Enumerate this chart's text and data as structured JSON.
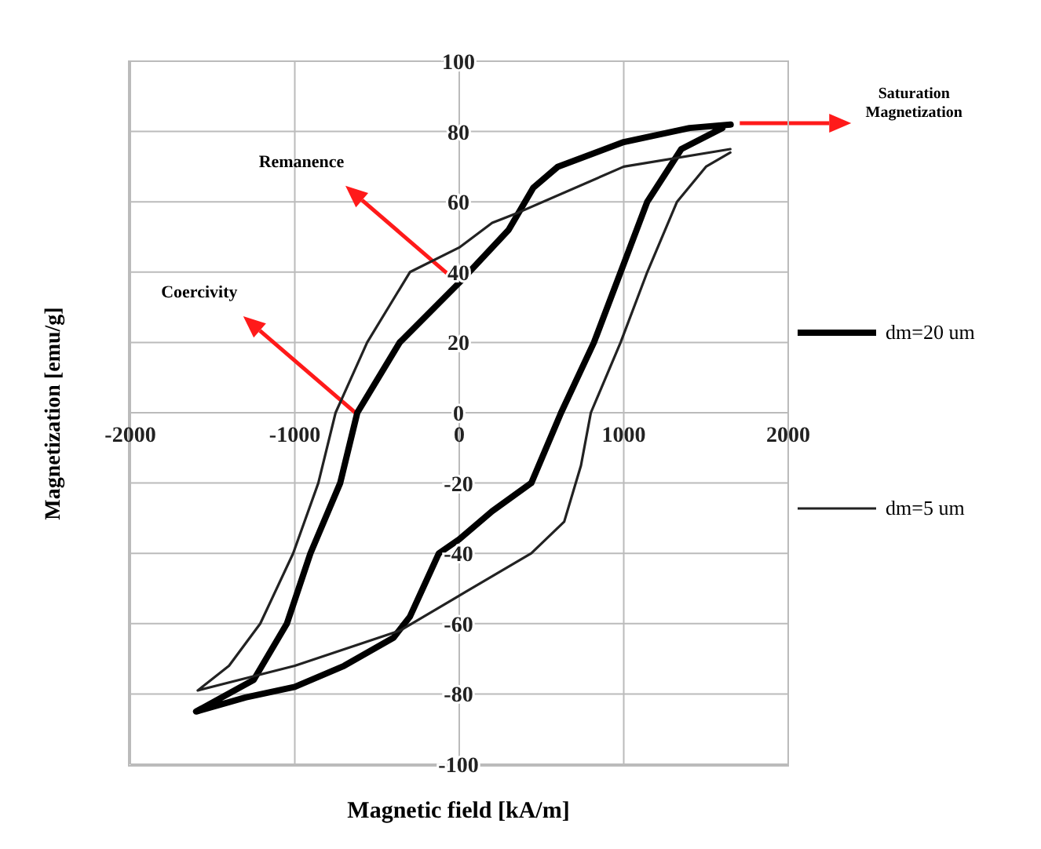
{
  "chart_data": {
    "type": "line",
    "xlabel": "Magnetic field [kA/m]",
    "ylabel": "Magnetization [emu/g]",
    "xlim": [
      -2000,
      2000
    ],
    "xticks": [
      -2000,
      -1000,
      0,
      1000,
      2000
    ],
    "ylim": [
      -100,
      100
    ],
    "yticks": [
      -100,
      -80,
      -60,
      -40,
      -20,
      0,
      20,
      40,
      60,
      80,
      100
    ],
    "grid": true,
    "legend": "right",
    "marker": "none",
    "line_style": "solid",
    "series": [
      {
        "name": "dm=20 um",
        "color": "#000000",
        "x": [
          1650,
          1400,
          1000,
          600,
          450,
          300,
          0,
          -362,
          -620,
          -724,
          -905,
          -1048,
          -1250,
          -1600,
          -1300,
          -1000,
          -700,
          -400,
          -300,
          -124,
          0,
          200,
          438,
          619,
          819,
          981,
          1143,
          1350,
          1600
        ],
        "values": [
          82,
          81,
          77,
          70,
          64,
          52,
          37,
          20,
          0,
          -20,
          -40,
          -60,
          -76,
          -85,
          -81,
          -78,
          -72,
          -64,
          -58,
          -40,
          -36,
          -28,
          -20,
          0,
          20,
          40,
          60,
          75,
          81
        ]
      },
      {
        "name": "dm=5 um",
        "color": "#222222",
        "x": [
          1648,
          1000,
          362,
          200,
          0,
          -300,
          -560,
          -752,
          -857,
          -1010,
          -1210,
          -1400,
          -1590,
          -1000,
          -362,
          38,
          438,
          638,
          740,
          800,
          981,
          1143,
          1324,
          1500,
          1648
        ],
        "values": [
          75,
          70,
          57,
          54,
          47,
          40,
          20,
          0,
          -20,
          -40,
          -60,
          -72,
          -79,
          -72,
          -62,
          -51,
          -40,
          -31,
          -15,
          0,
          20,
          40,
          60,
          70,
          74
        ]
      }
    ],
    "annotations": [
      "Remanence",
      "Coercivity",
      "Saturation Magnetization"
    ]
  }
}
